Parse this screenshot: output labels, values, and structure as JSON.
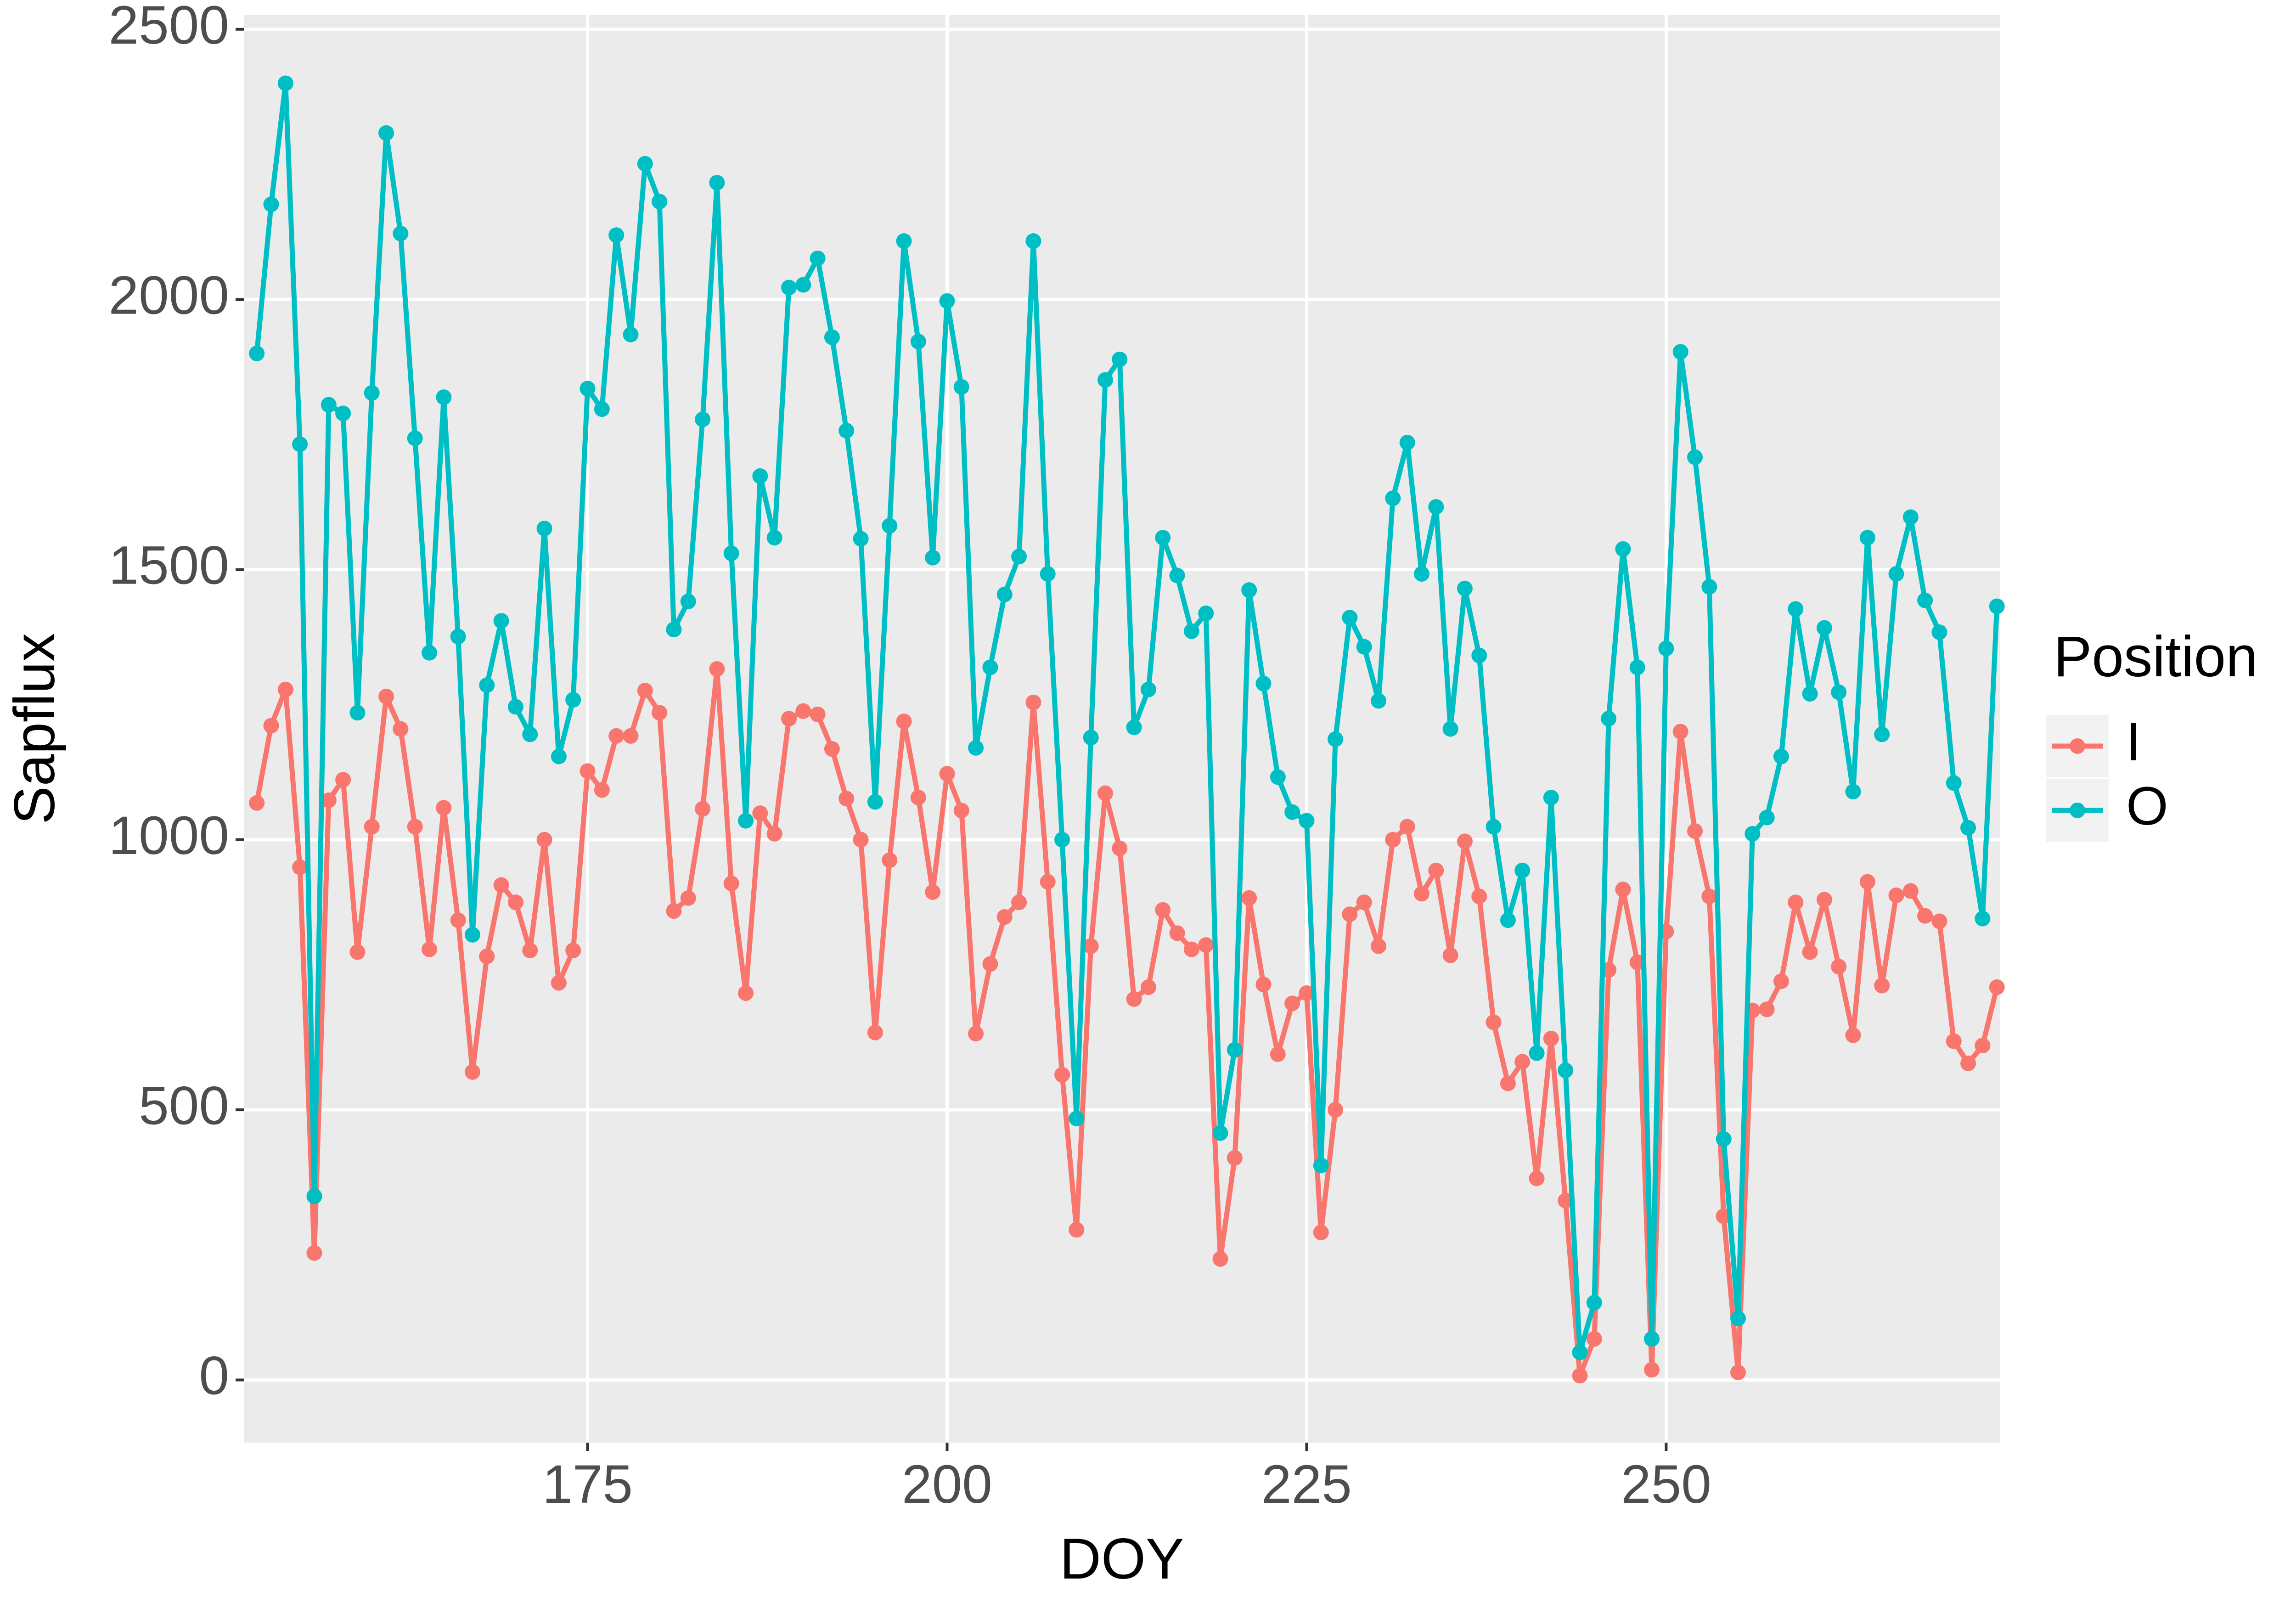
{
  "chart_data": {
    "type": "line",
    "x_label": "DOY",
    "y_label": "Sapflux",
    "legend_title": "Position",
    "legend_position": "right",
    "grid": true,
    "xlim": [
      151.1,
      273.2
    ],
    "ylim": [
      -116,
      2527
    ],
    "xticks": [
      175,
      200,
      225,
      250
    ],
    "yticks": [
      0,
      500,
      1000,
      1500,
      2000,
      2500
    ],
    "x": [
      152,
      153,
      154,
      155,
      156,
      157,
      158,
      159,
      160,
      161,
      162,
      163,
      164,
      165,
      166,
      167,
      168,
      169,
      170,
      171,
      172,
      173,
      174,
      175,
      176,
      177,
      178,
      179,
      180,
      181,
      182,
      183,
      184,
      185,
      186,
      187,
      188,
      189,
      190,
      191,
      192,
      193,
      194,
      195,
      196,
      197,
      198,
      199,
      200,
      201,
      202,
      203,
      204,
      205,
      206,
      207,
      208,
      209,
      210,
      211,
      212,
      213,
      214,
      215,
      216,
      217,
      218,
      219,
      220,
      221,
      222,
      223,
      224,
      225,
      226,
      227,
      228,
      229,
      230,
      231,
      232,
      233,
      234,
      235,
      236,
      237,
      238,
      239,
      240,
      241,
      242,
      243,
      244,
      245,
      246,
      247,
      248,
      249,
      250,
      251,
      252,
      253,
      254,
      255,
      256,
      257,
      258,
      259,
      260,
      261,
      262,
      263,
      264,
      265,
      266,
      267,
      268,
      269,
      270,
      271,
      272,
      273
    ],
    "series": [
      {
        "name": "I",
        "color": "#f8766d",
        "values": [
          1068,
          1211,
          1278,
          949,
          235,
          1073,
          1111,
          792,
          1024,
          1265,
          1205,
          1024,
          797,
          1059,
          851,
          570,
          784,
          916,
          884,
          795,
          1000,
          735,
          795,
          1127,
          1092,
          1192,
          1192,
          1276,
          1235,
          868,
          892,
          1057,
          1316,
          919,
          716,
          1049,
          1011,
          1224,
          1238,
          1232,
          1168,
          1076,
          1000,
          643,
          962,
          1219,
          1078,
          903,
          1122,
          1054,
          641,
          770,
          857,
          884,
          1254,
          922,
          565,
          278,
          803,
          1086,
          984,
          705,
          727,
          870,
          827,
          797,
          805,
          224,
          411,
          892,
          732,
          603,
          697,
          716,
          273,
          500,
          862,
          884,
          803,
          1000,
          1024,
          900,
          943,
          786,
          997,
          895,
          662,
          549,
          589,
          373,
          632,
          332,
          8,
          76,
          759,
          908,
          773,
          19,
          830,
          1200,
          1016,
          895,
          303,
          14,
          684,
          686,
          738,
          884,
          792,
          889,
          765,
          638,
          922,
          730,
          897,
          905,
          859,
          849,
          627,
          586,
          619,
          727
        ]
      },
      {
        "name": "O",
        "color": "#00bfc4",
        "values": [
          1900,
          2176,
          2400,
          1732,
          340,
          1805,
          1789,
          1235,
          1827,
          2308,
          2122,
          1743,
          1346,
          1819,
          1376,
          824,
          1286,
          1405,
          1246,
          1195,
          1576,
          1154,
          1259,
          1835,
          1797,
          2119,
          1935,
          2251,
          2181,
          1389,
          1441,
          1778,
          2216,
          1530,
          1035,
          1673,
          1559,
          2022,
          2027,
          2076,
          1930,
          1757,
          1557,
          1070,
          1581,
          2108,
          1922,
          1522,
          1997,
          1838,
          1170,
          1319,
          1454,
          1524,
          2108,
          1492,
          1000,
          484,
          1189,
          1851,
          1889,
          1208,
          1278,
          1559,
          1489,
          1386,
          1419,
          457,
          611,
          1462,
          1289,
          1116,
          1051,
          1035,
          397,
          1186,
          1411,
          1357,
          1257,
          1632,
          1735,
          1492,
          1616,
          1205,
          1465,
          1341,
          1024,
          851,
          943,
          605,
          1078,
          573,
          51,
          143,
          1224,
          1538,
          1319,
          76,
          1354,
          1903,
          1708,
          1468,
          446,
          114,
          1011,
          1041,
          1154,
          1427,
          1270,
          1392,
          1273,
          1089,
          1559,
          1195,
          1492,
          1597,
          1443,
          1384,
          1105,
          1022,
          854,
          1432
        ]
      }
    ]
  }
}
